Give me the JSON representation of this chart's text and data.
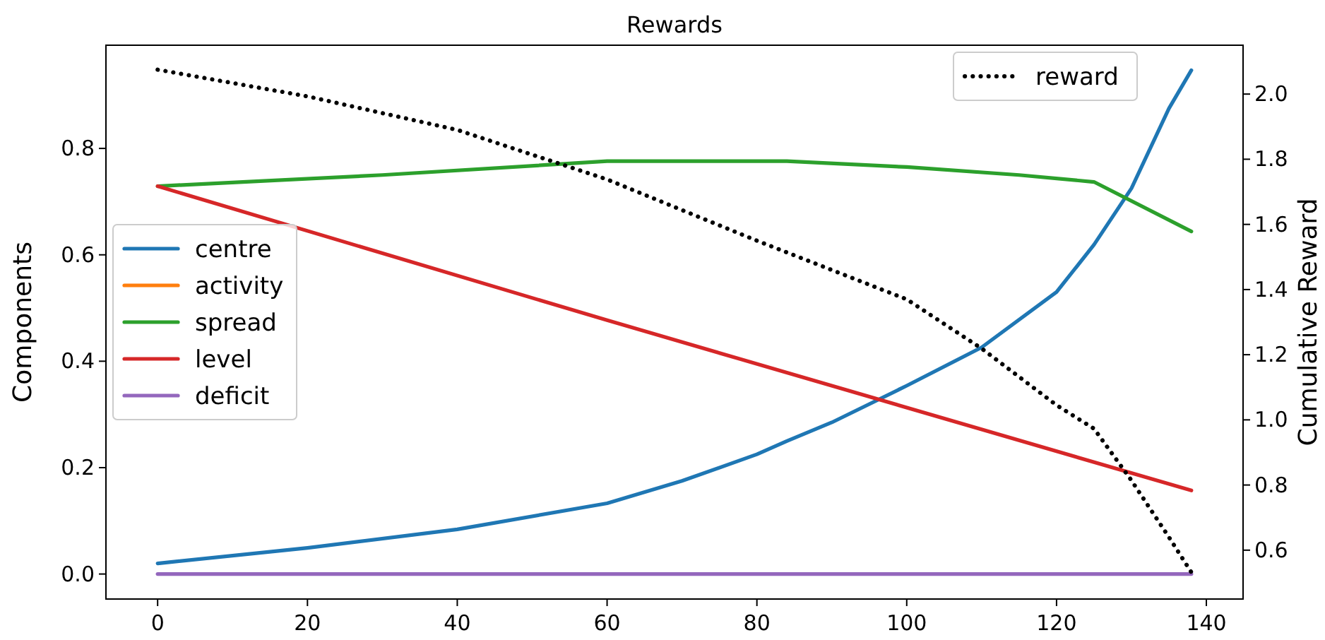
{
  "chart_data": {
    "type": "line",
    "title": "Rewards",
    "ylabel": "Components",
    "y2label": "Cumulative Reward",
    "xlim": [
      -6.9,
      144.9
    ],
    "xticks": [
      0,
      20,
      40,
      60,
      80,
      100,
      120,
      140
    ],
    "ylim": [
      -0.047,
      0.994
    ],
    "yticks": [
      {
        "value": 0,
        "label": "0.0"
      },
      {
        "value": 0.2,
        "label": "0.2"
      },
      {
        "value": 0.4,
        "label": "0.4"
      },
      {
        "value": 0.6,
        "label": "0.6"
      },
      {
        "value": 0.8,
        "label": "0.8"
      }
    ],
    "y2lim": [
      0.45,
      2.15
    ],
    "y2ticks": [
      {
        "value": 0.6,
        "label": "0.6"
      },
      {
        "value": 0.8,
        "label": "0.8"
      },
      {
        "value": 1.0,
        "label": "1.0"
      },
      {
        "value": 1.2,
        "label": "1.2"
      },
      {
        "value": 1.4,
        "label": "1.4"
      },
      {
        "value": 1.6,
        "label": "1.6"
      },
      {
        "value": 1.8,
        "label": "1.8"
      },
      {
        "value": 2.0,
        "label": "2.0"
      }
    ],
    "legend": "left",
    "grid": false,
    "marker": "none",
    "line_style": "solid",
    "series": [
      {
        "name": "centre",
        "color": "#1f77b4",
        "x": [
          0,
          20,
          40,
          60,
          70,
          80,
          84,
          90,
          100,
          110,
          120,
          125,
          130,
          135,
          138
        ],
        "values": [
          0.02,
          0.049,
          0.084,
          0.133,
          0.175,
          0.225,
          0.25,
          0.285,
          0.354,
          0.426,
          0.53,
          0.619,
          0.725,
          0.875,
          0.947
        ]
      },
      {
        "name": "activity",
        "color": "#ff7f0e"
      },
      {
        "name": "spread",
        "color": "#2ca02c",
        "x": [
          0,
          30,
          60,
          84,
          100,
          115,
          125,
          138
        ],
        "values": [
          0.729,
          0.75,
          0.776,
          0.776,
          0.765,
          0.75,
          0.737,
          0.644
        ]
      },
      {
        "name": "level",
        "color": "#d62728",
        "x": [
          0,
          60,
          138
        ],
        "values": [
          0.729,
          0.477,
          0.157
        ]
      },
      {
        "name": "deficit",
        "color": "#9467bd",
        "x": [
          0,
          138
        ],
        "values": [
          0,
          0
        ]
      },
      {
        "name": "reward",
        "color": "#000000",
        "axis": "y2",
        "line_style": "dotted",
        "x": [
          0,
          20,
          40,
          60,
          80,
          100,
          110,
          120,
          125,
          130,
          135,
          138
        ],
        "values": [
          2.075,
          1.993,
          1.89,
          1.738,
          1.55,
          1.37,
          1.219,
          1.045,
          0.973,
          0.814,
          0.64,
          0.532
        ]
      }
    ]
  }
}
